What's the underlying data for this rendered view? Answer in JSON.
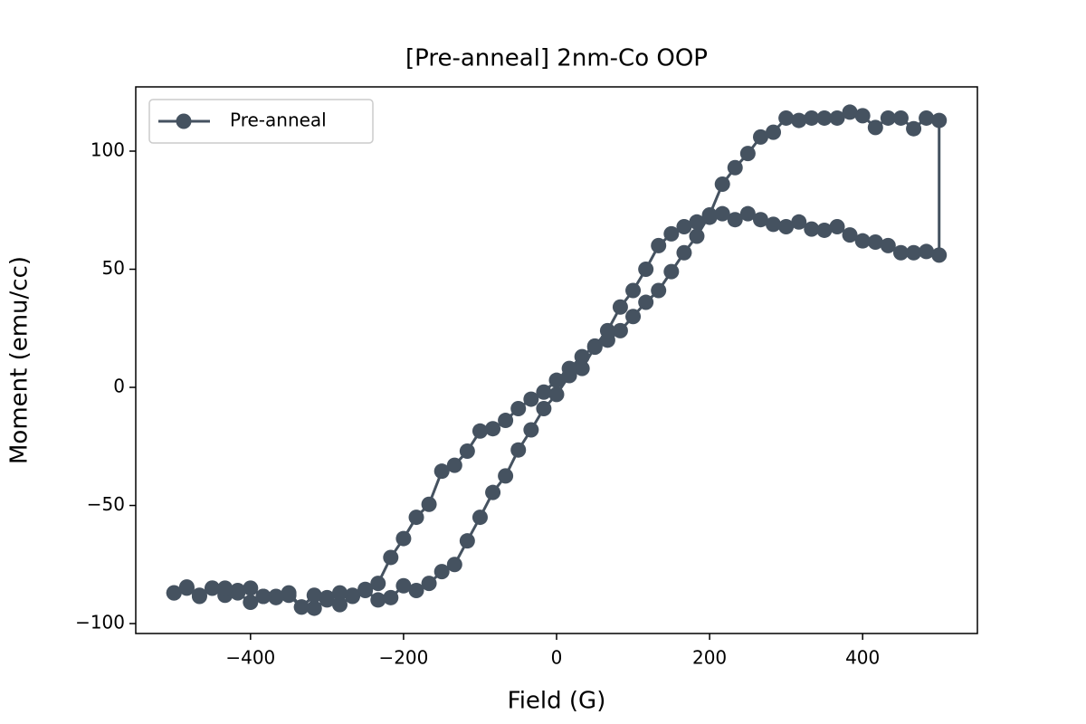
{
  "chart_data": {
    "type": "line",
    "title": "[Pre-anneal] 2nm-Co OOP",
    "x_label": "Field (G)",
    "y_label": "Moment (emu/cc)",
    "xlim": [
      -550,
      550
    ],
    "ylim": [
      -104.2,
      127.2
    ],
    "xticks": [
      {
        "value": -400,
        "label": "−400"
      },
      {
        "value": -200,
        "label": "−200"
      },
      0,
      200,
      400
    ],
    "yticks": [
      {
        "value": -100,
        "label": "−100"
      },
      {
        "value": -50,
        "label": "−50"
      },
      0,
      50,
      100
    ],
    "legend": "upper left",
    "grid": false,
    "series": [
      {
        "name": "Pre-anneal",
        "color": "#455260",
        "x": [
          -500,
          -483.3,
          -466.7,
          -450,
          -433.3,
          -416.7,
          -400,
          -383.3,
          -366.7,
          -350,
          -333.3,
          -316.7,
          -300,
          -283.3,
          -266.7,
          -250,
          -233.3,
          -216.7,
          -200,
          -183.3,
          -166.7,
          -150,
          -133.3,
          -116.7,
          -100,
          -83.3,
          -66.7,
          -50,
          -33.3,
          -16.7,
          0,
          16.7,
          33.3,
          50,
          66.7,
          83.3,
          100,
          116.7,
          133.3,
          150,
          166.7,
          183.3,
          200,
          216.7,
          233.3,
          250,
          266.7,
          283.3,
          300,
          316.7,
          333.3,
          350,
          366.7,
          383.3,
          400,
          416.7,
          433.3,
          450,
          466.7,
          483.3,
          500,
          500,
          483.3,
          466.7,
          450,
          433.3,
          416.7,
          400,
          383.3,
          366.7,
          350,
          333.3,
          316.7,
          300,
          283.3,
          266.7,
          250,
          233.3,
          216.7,
          200,
          183.3,
          166.7,
          150,
          133.3,
          116.7,
          100,
          83.3,
          66.7,
          50,
          33.3,
          16.7,
          0,
          -16.7,
          -33.3,
          -50,
          -66.7,
          -83.3,
          -100,
          -116.7,
          -133.3,
          -150,
          -166.7,
          -183.3,
          -200,
          -216.7,
          -233.3,
          -250,
          -266.7,
          -283.3,
          -300,
          -316.7,
          -333.3,
          -350,
          -366.7,
          -383.3,
          -400,
          -416.7,
          -433.3,
          -450,
          -466.7,
          -483.3,
          -500
        ],
        "values": [
          -87,
          -85,
          -88.5,
          -85,
          -88,
          -87,
          -91,
          -88.5,
          -89,
          -88,
          -93,
          -93.5,
          -90,
          -92,
          -88.5,
          -86,
          -90,
          -89,
          -84,
          -86,
          -83,
          -78,
          -75,
          -65,
          -55,
          -44.5,
          -37.5,
          -26.5,
          -18,
          -9,
          -3,
          5,
          8,
          17,
          20,
          24,
          30,
          36,
          41,
          49,
          57,
          64,
          73,
          86,
          93,
          99,
          106,
          108,
          114,
          113,
          114,
          114,
          114,
          116.5,
          115,
          110,
          114,
          114,
          109.5,
          114,
          113,
          56,
          57.5,
          57,
          57,
          60,
          61.5,
          62,
          64.5,
          68,
          66.5,
          67,
          70,
          68,
          69,
          71,
          73.5,
          71,
          73.5,
          72,
          70,
          68,
          65,
          60,
          50,
          41,
          34,
          24,
          17.5,
          13,
          8,
          3,
          -2,
          -5,
          -9,
          -14,
          -17.5,
          -18.5,
          -27,
          -33,
          -35.5,
          -49.5,
          -55,
          -64,
          -72,
          -83,
          -85.5,
          -88,
          -87,
          -89,
          -88,
          -93,
          -87,
          -88.5,
          -88.5,
          -85,
          -86,
          -85,
          -85,
          -88,
          -84.5,
          -87
        ]
      }
    ]
  }
}
